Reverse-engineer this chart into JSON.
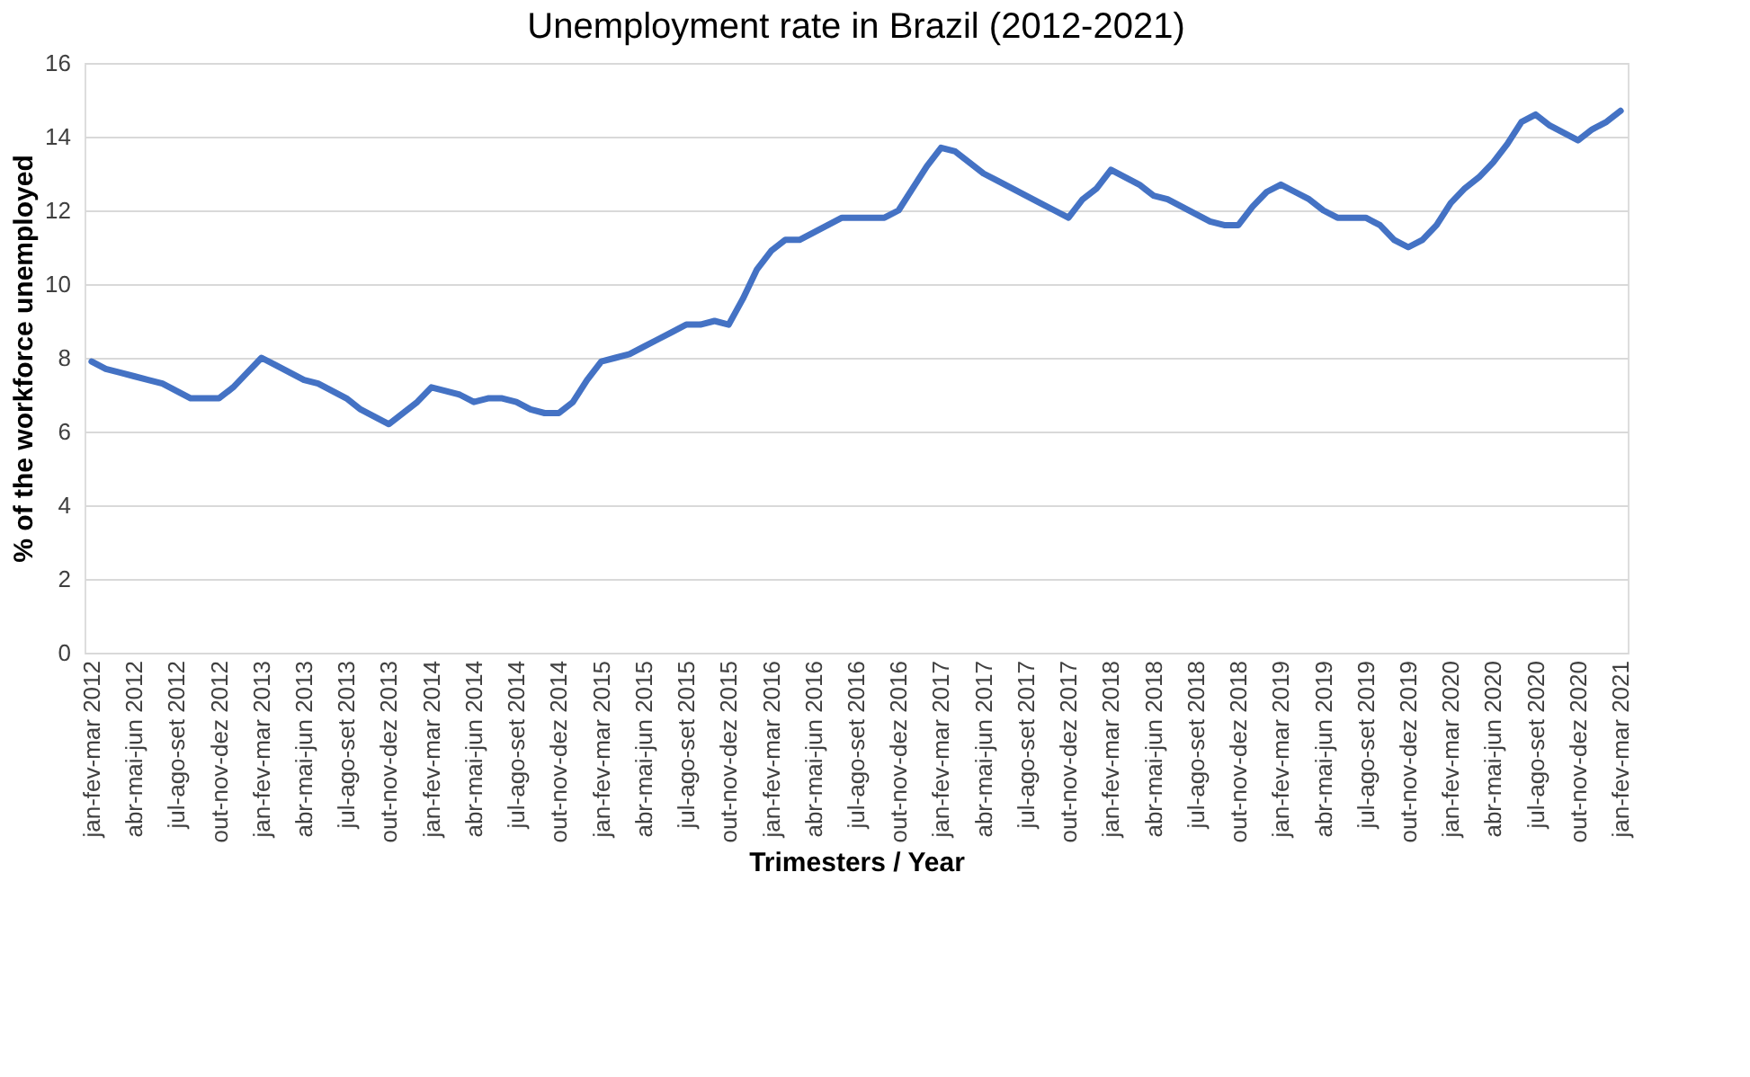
{
  "chart_data": {
    "type": "line",
    "title": "Unemployment rate in Brazil (2012-2021)",
    "xlabel": "Trimesters / Year",
    "ylabel": "% of the workforce unemployed",
    "categories": [
      "jan-fev-mar 2012",
      null,
      null,
      "abr-mai-jun 2012",
      null,
      null,
      "jul-ago-set 2012",
      null,
      null,
      "out-nov-dez 2012",
      null,
      null,
      "jan-fev-mar 2013",
      null,
      null,
      "abr-mai-jun 2013",
      null,
      null,
      "jul-ago-set 2013",
      null,
      null,
      "out-nov-dez 2013",
      null,
      null,
      "jan-fev-mar 2014",
      null,
      null,
      "abr-mai-jun 2014",
      null,
      null,
      "jul-ago-set 2014",
      null,
      null,
      "out-nov-dez 2014",
      null,
      null,
      "jan-fev-mar 2015",
      null,
      null,
      "abr-mai-jun 2015",
      null,
      null,
      "jul-ago-set 2015",
      null,
      null,
      "out-nov-dez 2015",
      null,
      null,
      "jan-fev-mar 2016",
      null,
      null,
      "abr-mai-jun 2016",
      null,
      null,
      "jul-ago-set 2016",
      null,
      null,
      "out-nov-dez 2016",
      null,
      null,
      "jan-fev-mar 2017",
      null,
      null,
      "abr-mai-jun 2017",
      null,
      null,
      "jul-ago-set 2017",
      null,
      null,
      "out-nov-dez 2017",
      null,
      null,
      "jan-fev-mar 2018",
      null,
      null,
      "abr-mai-jun 2018",
      null,
      null,
      "jul-ago-set 2018",
      null,
      null,
      "out-nov-dez 2018",
      null,
      null,
      "jan-fev-mar 2019",
      null,
      null,
      "abr-mai-jun 2019",
      null,
      null,
      "jul-ago-set 2019",
      null,
      null,
      "out-nov-dez 2019",
      null,
      null,
      "jan-fev-mar 2020",
      null,
      null,
      "abr-mai-jun 2020",
      null,
      null,
      "jul-ago-set 2020",
      null,
      null,
      "out-nov-dez 2020",
      null,
      null,
      "jan-fev-mar 2021"
    ],
    "series": [
      {
        "color": "#4472c4",
        "values": [
          7.9,
          7.7,
          7.6,
          7.5,
          7.4,
          7.3,
          7.1,
          6.9,
          6.9,
          6.9,
          7.2,
          7.6,
          8.0,
          7.8,
          7.6,
          7.4,
          7.3,
          7.1,
          6.9,
          6.6,
          6.4,
          6.2,
          6.5,
          6.8,
          7.2,
          7.1,
          7.0,
          6.8,
          6.9,
          6.9,
          6.8,
          6.6,
          6.5,
          6.5,
          6.8,
          7.4,
          7.9,
          8.0,
          8.1,
          8.3,
          8.5,
          8.7,
          8.9,
          8.9,
          9.0,
          8.9,
          9.6,
          10.4,
          10.9,
          11.2,
          11.2,
          11.4,
          11.6,
          11.8,
          11.8,
          11.8,
          11.8,
          12.0,
          12.6,
          13.2,
          13.7,
          13.6,
          13.3,
          13.0,
          12.8,
          12.6,
          12.4,
          12.2,
          12.0,
          11.8,
          12.3,
          12.6,
          13.1,
          12.9,
          12.7,
          12.4,
          12.3,
          12.1,
          11.9,
          11.7,
          11.6,
          11.6,
          12.1,
          12.5,
          12.7,
          12.5,
          12.3,
          12.0,
          11.8,
          11.8,
          11.8,
          11.6,
          11.2,
          11.0,
          11.2,
          11.6,
          12.2,
          12.6,
          12.9,
          13.3,
          13.8,
          14.4,
          14.6,
          14.3,
          14.1,
          13.9,
          14.2,
          14.4,
          14.7
        ]
      }
    ],
    "ylim": [
      0,
      16
    ],
    "yticks": [
      0,
      2,
      4,
      6,
      8,
      10,
      12,
      14,
      16
    ],
    "grid": "y"
  }
}
